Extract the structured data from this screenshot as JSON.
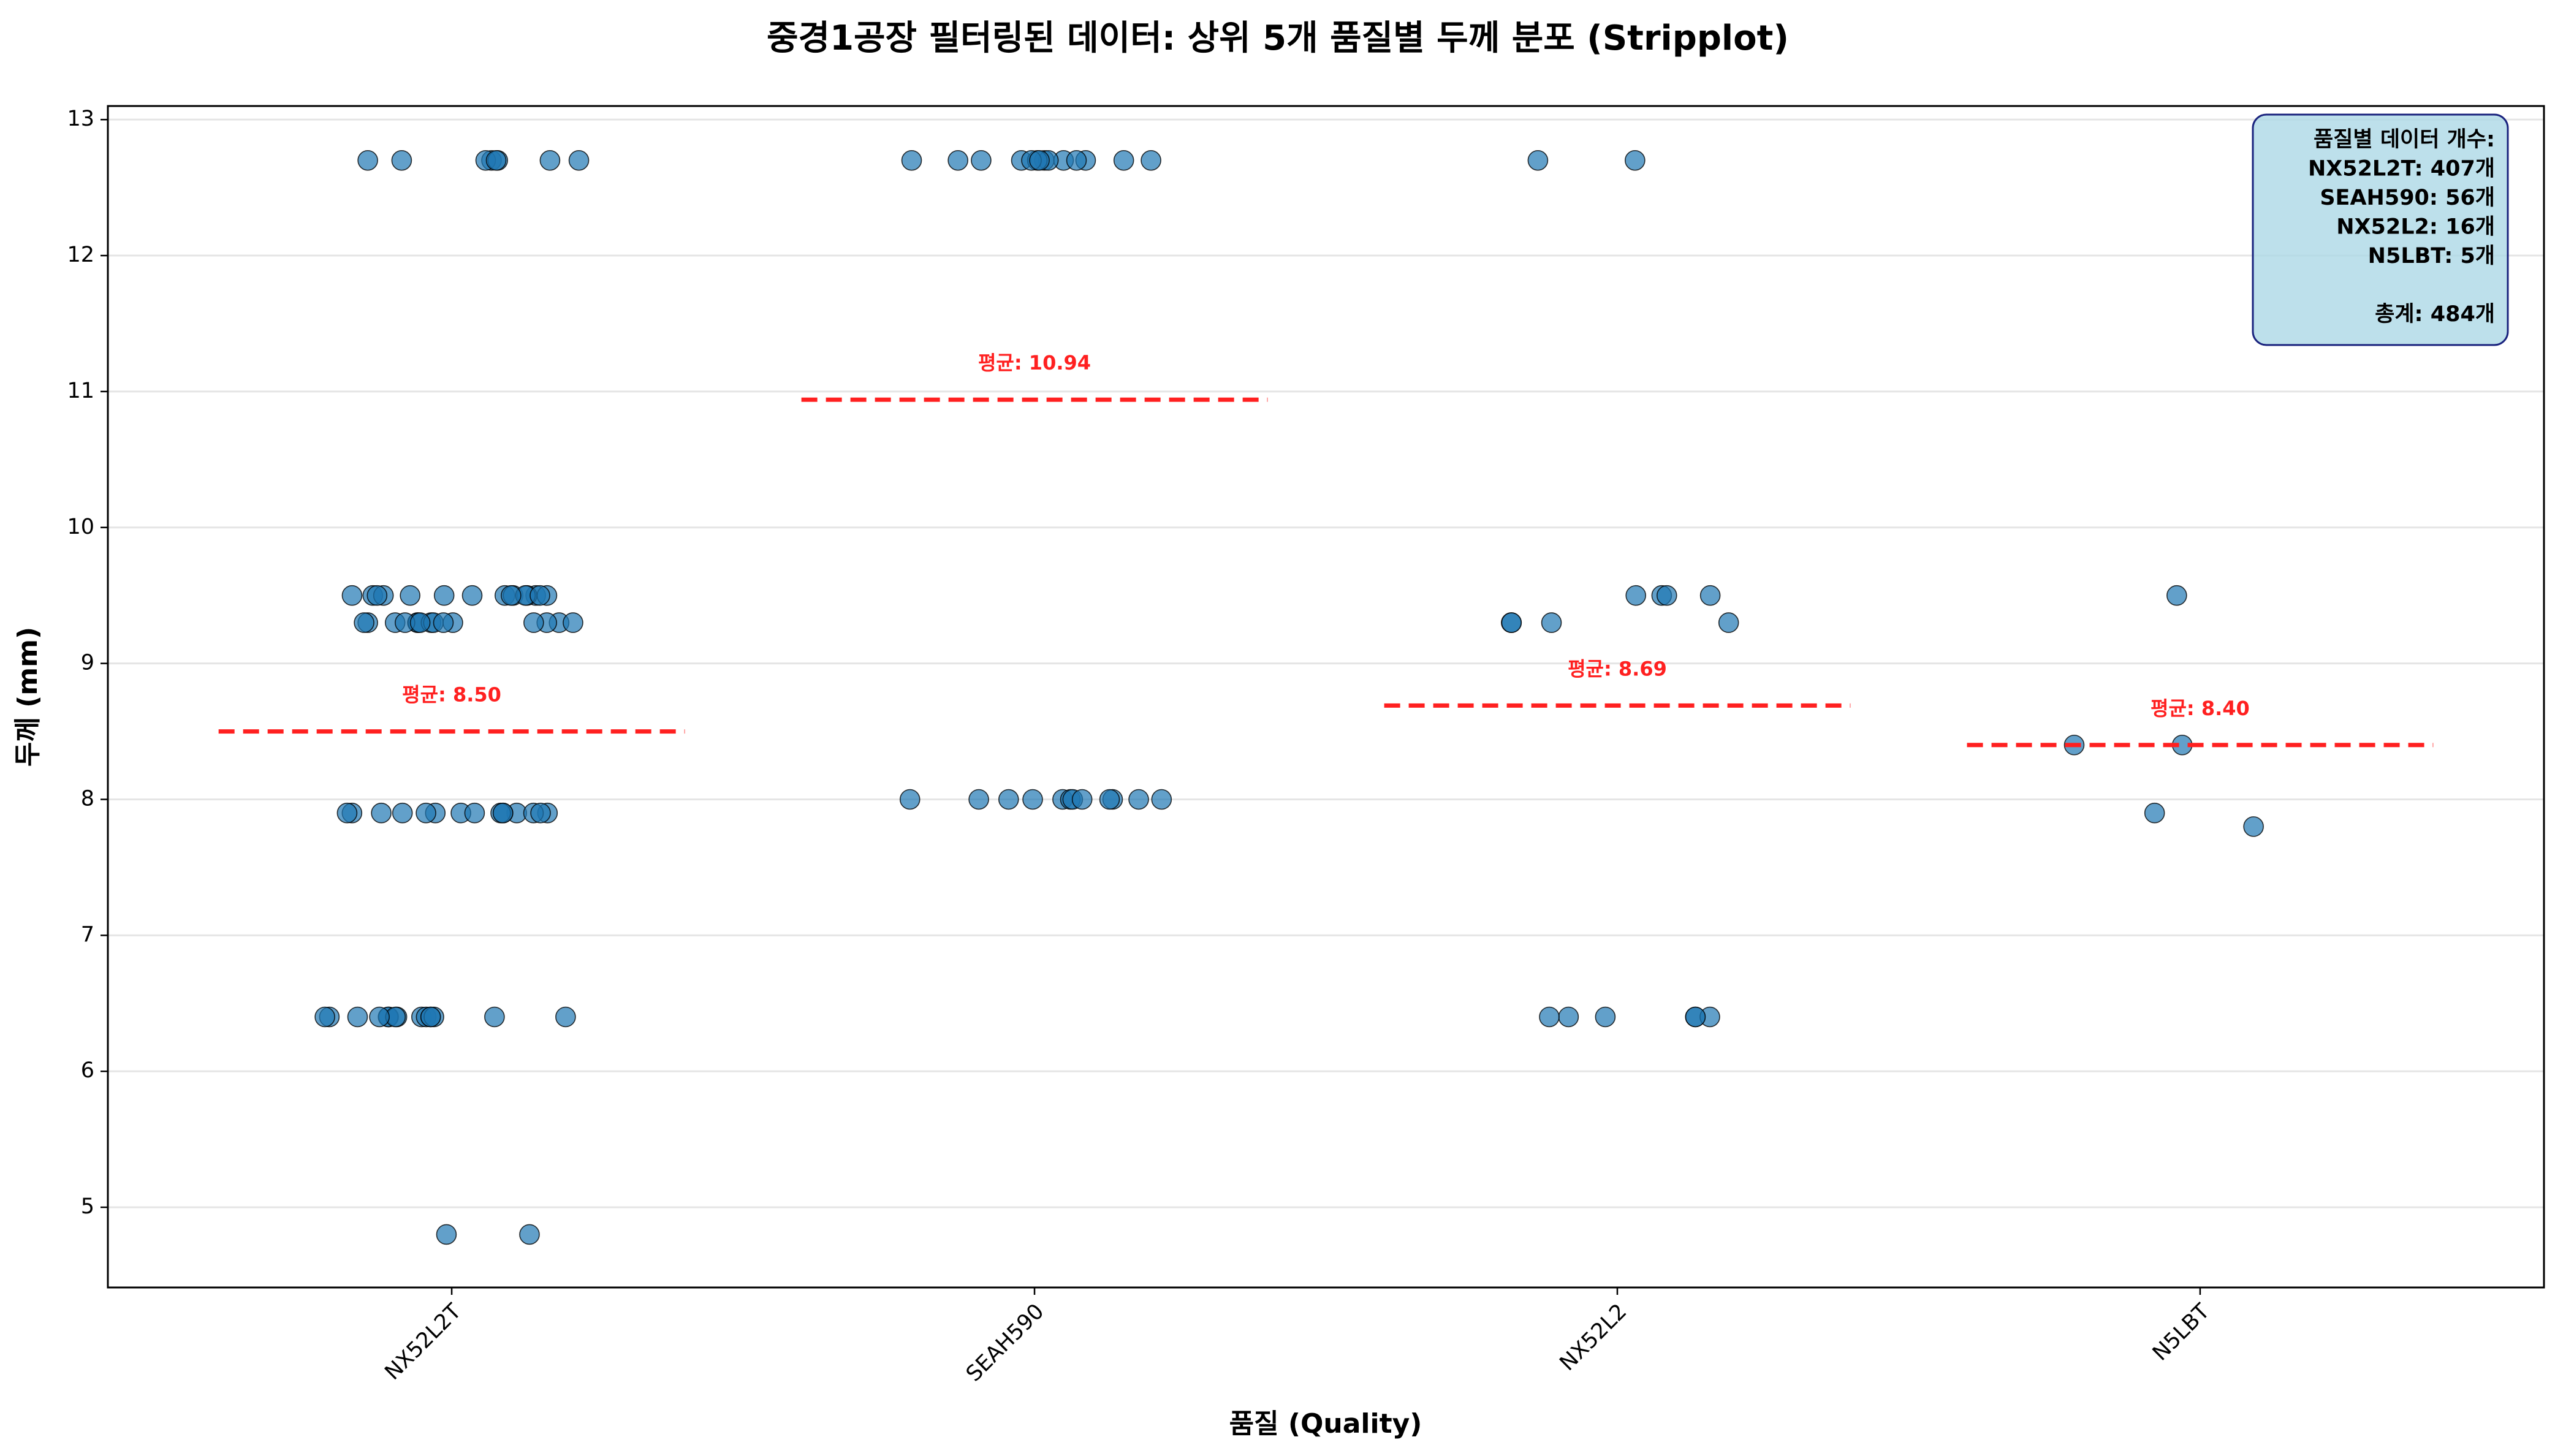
{
  "chart_data": {
    "type": "strip",
    "title": "중경1공장 필터링된 데이터: 상위 5개 품질별 두께 분포 (Stripplot)",
    "x_label": "품질 (Quality)",
    "y_label": "두께 (mm)",
    "categories": [
      "NX52L2T",
      "SEAH590",
      "NX52L2",
      "N5LBT"
    ],
    "points": [
      [
        12.7,
        12.7,
        12.7,
        12.7,
        12.7,
        12.7,
        12.7,
        12.7,
        9.5,
        9.5,
        9.5,
        9.5,
        9.5,
        9.5,
        9.5,
        9.5,
        9.5,
        9.5,
        9.5,
        9.5,
        9.5,
        9.5,
        9.5,
        9.3,
        9.3,
        9.3,
        9.3,
        9.3,
        9.3,
        9.3,
        9.3,
        9.3,
        9.3,
        9.3,
        9.3,
        9.3,
        9.3,
        9.3,
        7.9,
        7.9,
        7.9,
        7.9,
        7.9,
        7.9,
        7.9,
        7.9,
        7.9,
        7.9,
        7.9,
        7.9,
        7.9,
        7.9,
        7.9,
        6.4,
        6.4,
        6.4,
        6.4,
        6.4,
        6.4,
        6.4,
        6.4,
        6.4,
        6.4,
        6.4,
        6.4,
        6.4,
        6.4,
        6.4,
        4.8,
        4.8
      ],
      [
        12.7,
        12.7,
        12.7,
        12.7,
        12.7,
        12.7,
        12.7,
        12.7,
        12.7,
        12.7,
        12.7,
        12.7,
        12.7,
        12.7,
        8.0,
        8.0,
        8.0,
        8.0,
        8.0,
        8.0,
        8.0,
        8.0,
        8.0,
        8.0,
        8.0,
        8.0
      ],
      [
        12.7,
        12.7,
        9.5,
        9.5,
        9.5,
        9.5,
        9.3,
        9.3,
        9.3,
        9.3,
        6.4,
        6.4,
        6.4,
        6.4,
        6.4,
        6.4
      ],
      [
        9.5,
        8.4,
        8.4,
        7.9,
        7.8
      ]
    ],
    "means": [
      8.5,
      10.94,
      8.69,
      8.4
    ],
    "mean_labels": [
      "평균: 8.50",
      "평균: 10.94",
      "평균: 8.69",
      "평균: 8.40"
    ],
    "annotation_lines": [
      "품질별 데이터 개수:",
      "NX52L2T: 407개",
      "SEAH590: 56개",
      "NX52L2: 16개",
      "N5LBT: 5개",
      "총계: 484개"
    ],
    "color": "#1f77b4",
    "mean_color": "#ff2020",
    "ylim": [
      4.41,
      13.1
    ],
    "yticks": [
      5,
      6,
      7,
      8,
      9,
      10,
      11,
      12,
      13
    ],
    "grid": true
  }
}
